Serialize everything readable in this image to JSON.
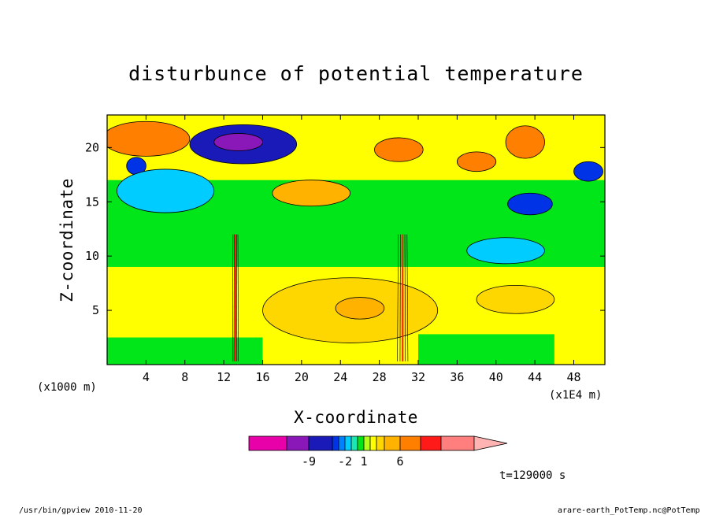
{
  "chart_data": {
    "type": "heatmap",
    "title": "disturbunce of potential temperature",
    "xlabel": "X-coordinate",
    "ylabel": "Z-coordinate",
    "x_unit_left": "(x1000 m)",
    "x_unit_right": "(x1E4 m)",
    "x_ticks": [
      4,
      8,
      12,
      16,
      20,
      24,
      28,
      32,
      36,
      40,
      44,
      48
    ],
    "x_tick_labels": [
      "4",
      "8",
      "12",
      "16",
      "20",
      "24",
      "28",
      "32",
      "36",
      "40",
      "44",
      "48"
    ],
    "y_ticks": [
      5,
      10,
      15,
      20
    ],
    "y_tick_labels": [
      "5",
      "10",
      "15",
      "20"
    ],
    "xlim": [
      0,
      51.2
    ],
    "ylim": [
      0,
      23
    ],
    "colorbar": {
      "colors": [
        "#e800a8",
        "#8a18b8",
        "#1a1ab8",
        "#0032e6",
        "#0082ff",
        "#00ccff",
        "#19e6b3",
        "#00e619",
        "#b3ff19",
        "#ffff00",
        "#ffd700",
        "#ffb300",
        "#ff7f00",
        "#ff1a1a",
        "#ff7f7f",
        "#ffb3b3"
      ],
      "tick_labels": [
        "-9",
        "-2",
        "1",
        "6"
      ],
      "tick_index": [
        2,
        5,
        8,
        12
      ]
    },
    "time_label": "t=129000 s",
    "footer_left": "/usr/bin/gpview  2010-11-20",
    "footer_right": "arare-earth_PotTemp.nc@PotTemp",
    "features": [
      {
        "x": 14,
        "z": 20.3,
        "rx": 5.5,
        "rz": 1.8,
        "level": -6
      },
      {
        "x": 13.5,
        "z": 20.5,
        "rx": 2.5,
        "rz": 0.8,
        "level": -9
      },
      {
        "x": 43.5,
        "z": 14.8,
        "rx": 2.3,
        "rz": 1.0,
        "level": -4
      },
      {
        "x": 49.5,
        "z": 17.8,
        "rx": 1.5,
        "rz": 0.9,
        "level": -4
      },
      {
        "x": 3,
        "z": 18.3,
        "rx": 1.0,
        "rz": 0.8,
        "level": -4
      },
      {
        "x": 4,
        "z": 20.8,
        "rx": 4.5,
        "rz": 1.6,
        "level": 4
      },
      {
        "x": 30,
        "z": 19.8,
        "rx": 2.5,
        "rz": 1.1,
        "level": 4
      },
      {
        "x": 43,
        "z": 20.5,
        "rx": 2.0,
        "rz": 1.5,
        "level": 4
      },
      {
        "x": 38,
        "z": 18.7,
        "rx": 2.0,
        "rz": 0.9,
        "level": 4
      },
      {
        "x": 21,
        "z": 15.8,
        "rx": 4.0,
        "rz": 1.2,
        "level": 3
      },
      {
        "x": 25,
        "z": 5,
        "rx": 9,
        "rz": 3.0,
        "level": 2
      },
      {
        "x": 42,
        "z": 6,
        "rx": 4,
        "rz": 1.3,
        "level": 2
      },
      {
        "x": 26,
        "z": 5.2,
        "rx": 2.5,
        "rz": 1.0,
        "level": 3
      },
      {
        "x": 6,
        "z": 16,
        "rx": 5,
        "rz": 2.0,
        "level": -1
      },
      {
        "x": 41,
        "z": 10.5,
        "rx": 4,
        "rz": 1.2,
        "level": -1
      }
    ]
  }
}
